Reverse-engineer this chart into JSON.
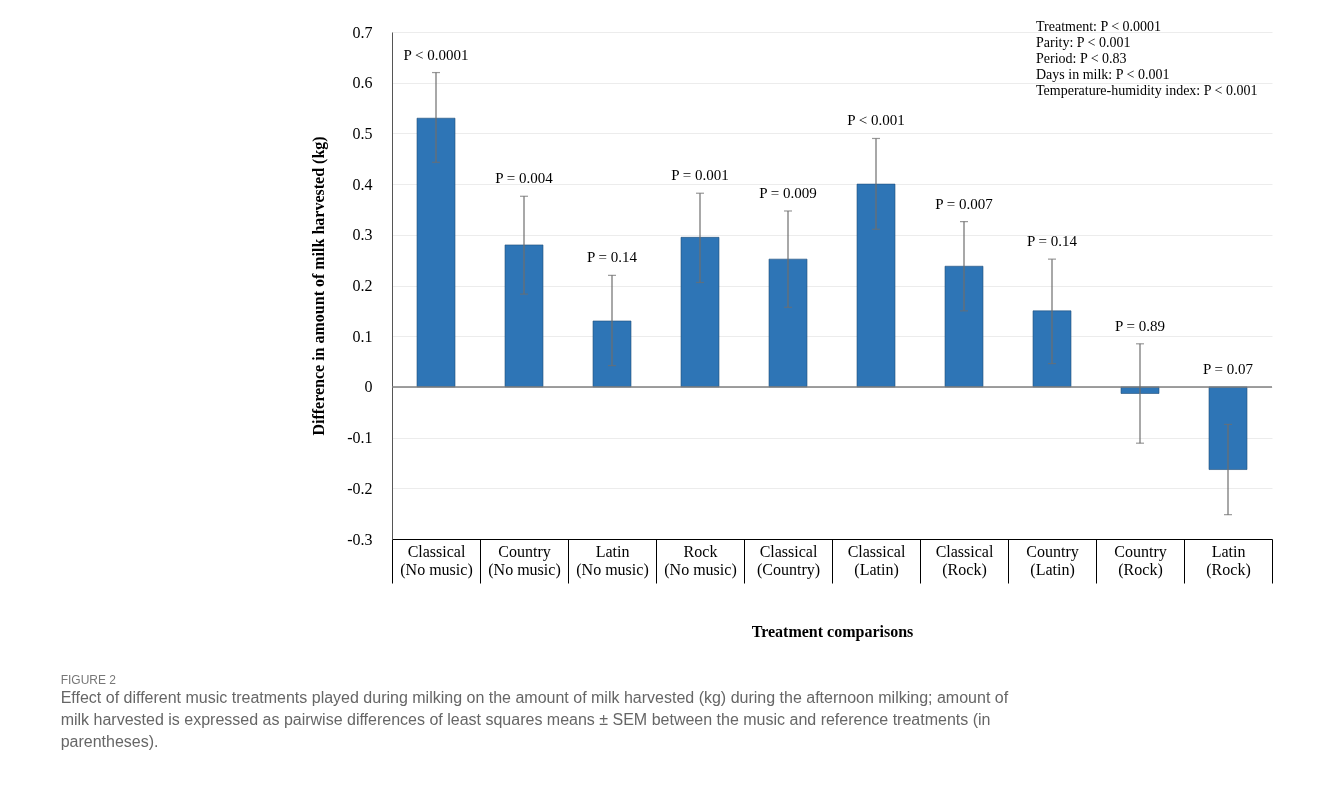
{
  "chart_data": {
    "type": "bar",
    "title": "FIGURE 2",
    "subtitle": "Effect of different music treatments played during milking on the amount of milk harvested (kg) during the afternoon milking; amount of milk harvested is expressed as pairwise differences of least squares means ± SEM between the music and reference treatments (in parentheses).",
    "xlabel": "Treatment comparisons",
    "ylabel": "Difference in amount of milk harvested (kg)",
    "categories": [
      "Classical\n(No music)",
      "Country\n(No music)",
      "Latin\n(No music)",
      "Rock\n(No music)",
      "Classical\n(Country)",
      "Classical\n(Latin)",
      "Classical\n(Rock)",
      "Country\n(Latin)",
      "Country\n(Rock)",
      "Latin\n(Rock)"
    ],
    "values": [
      0.53,
      0.28,
      0.13,
      0.295,
      0.252,
      0.4,
      0.238,
      0.15,
      -0.013,
      -0.163
    ],
    "errors": [
      [
        0.443,
        0.62
      ],
      [
        0.183,
        0.376
      ],
      [
        0.042,
        0.22
      ],
      [
        0.206,
        0.382
      ],
      [
        0.157,
        0.347
      ],
      [
        0.311,
        0.49
      ],
      [
        0.15,
        0.326
      ],
      [
        0.046,
        0.252
      ],
      [
        -0.111,
        0.085
      ],
      [
        -0.252,
        -0.074
      ]
    ],
    "color": "#2e75b6",
    "ylim": [
      -0.3,
      0.7
    ],
    "yticks": [
      -0.3,
      -0.2,
      -0.1,
      0,
      0.1,
      0.2,
      0.3,
      0.4,
      0.5,
      0.6,
      0.7
    ],
    "grid": "y",
    "ref_lines": [
      {
        "axis": "y",
        "value": 0,
        "color": "#7f7f7f"
      }
    ],
    "annotations": [
      "Treatment: P < 0.0001",
      "Parity: P < 0.001",
      "Period: P < 0.83",
      "Days in milk: P < 0.001",
      "Temperature-humidity index: P < 0.001",
      {
        "text": "P < 0.0001",
        "x": "Classical\n(No music)",
        "y": 0.62
      },
      {
        "text": "P = 0.004",
        "x": "Country\n(No music)",
        "y": 0.376
      },
      {
        "text": "P = 0.14",
        "x": "Latin\n(No music)",
        "y": 0.22
      },
      {
        "text": "P = 0.001",
        "x": "Rock\n(No music)",
        "y": 0.382
      },
      {
        "text": "P = 0.009",
        "x": "Classical\n(Country)",
        "y": 0.347
      },
      {
        "text": "P < 0.001",
        "x": "Classical\n(Latin)",
        "y": 0.49
      },
      {
        "text": "P = 0.007",
        "x": "Classical\n(Rock)",
        "y": 0.326
      },
      {
        "text": "P = 0.14",
        "x": "Country\n(Latin)",
        "y": 0.252
      },
      {
        "text": "P = 0.89",
        "x": "Country\n(Rock)",
        "y": 0.085
      },
      {
        "text": "P = 0.07",
        "x": "Latin\n(Rock)",
        "y": -0.0
      }
    ]
  }
}
